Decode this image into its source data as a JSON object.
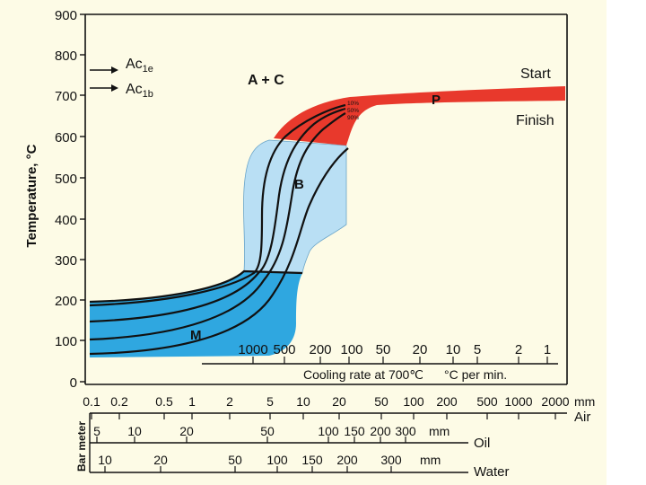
{
  "diagram": {
    "y_axis_title": "Temperature, °C",
    "y_ticks": [
      "900",
      "800",
      "700",
      "600",
      "500",
      "400",
      "300",
      "200",
      "100",
      "0"
    ],
    "ac_labels": [
      {
        "base": "Ac",
        "sub": "1e"
      },
      {
        "base": "Ac",
        "sub": "1b"
      }
    ],
    "regions": {
      "austenite_carbide": "A + C",
      "pearlite": "P",
      "bainite": "B",
      "martensite": "M"
    },
    "curve_labels": {
      "start": "Start",
      "finish": "Finish",
      "percentages": [
        "10%",
        "50%",
        "90%"
      ]
    },
    "cooling_rate": {
      "ticks": [
        "1000",
        "500",
        "200",
        "100",
        "50",
        "20",
        "10",
        "5",
        "2",
        "1"
      ],
      "caption": "Cooling rate at 700℃",
      "unit_caption": "°C per min."
    },
    "air_scale": {
      "ticks": [
        "0.1",
        "0.2",
        "0.5",
        "1",
        "2",
        "5",
        "10",
        "20",
        "50",
        "100",
        "200",
        "500",
        "1000",
        "2000"
      ],
      "unit": "mm",
      "label": "Air"
    },
    "bar_meter_label": "Bar meter",
    "oil_scale": {
      "ticks": [
        "5",
        "10",
        "20",
        "50",
        "100",
        "150",
        "200",
        "300"
      ],
      "unit": "mm",
      "label": "Oil"
    },
    "water_scale": {
      "ticks": [
        "10",
        "20",
        "50",
        "100",
        "150",
        "200",
        "300"
      ],
      "unit": "mm",
      "label": "Water"
    },
    "colors": {
      "panel_background": "#fdfbe6",
      "pearlite_red": "#e8392c",
      "bainite_light_blue": "#b9dff4",
      "martensite_blue": "#2fa7e0",
      "curve_black": "#111111"
    }
  }
}
